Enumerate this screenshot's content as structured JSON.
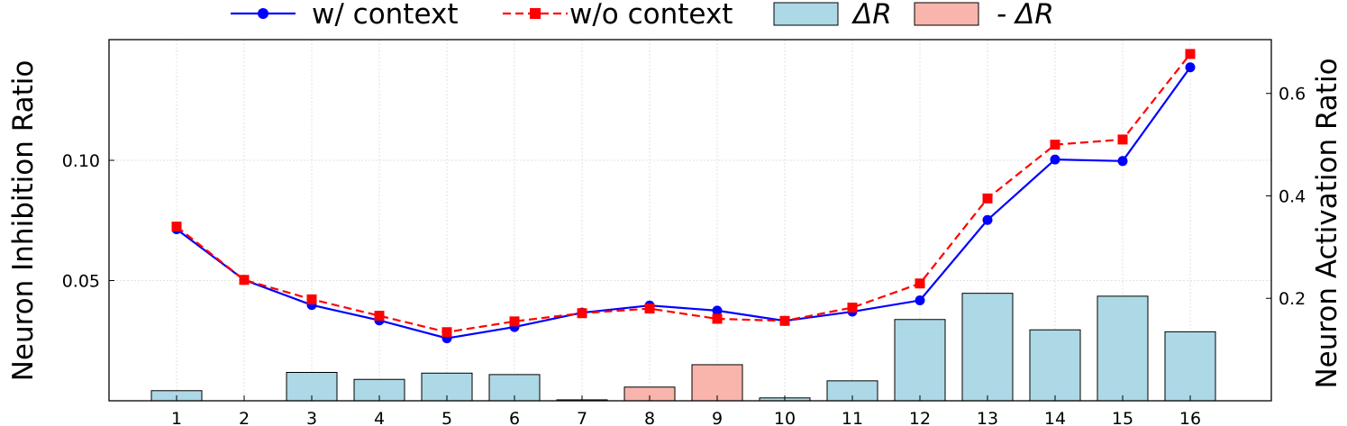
{
  "chart_data": {
    "type": "bar+line",
    "x": [
      1,
      2,
      3,
      4,
      5,
      6,
      7,
      8,
      9,
      10,
      11,
      12,
      13,
      14,
      15,
      16
    ],
    "ylabel_left": "Neuron Inhibition Ratio",
    "ylabel_right": "Neuron Activation Ratio",
    "left_yticks": [
      "0.05",
      "0.10"
    ],
    "right_yticks": [
      "0.2",
      "0.4",
      "0.6"
    ],
    "left_ylim": [
      0.0,
      0.1502
    ],
    "right_ylim": [
      0.0,
      0.705
    ],
    "grid": true,
    "legend_position": "top",
    "bars": {
      "axis": "left",
      "values": [
        0.0042,
        0.0,
        0.0118,
        0.0089,
        0.0115,
        0.0109,
        0.0004,
        0.0057,
        0.015,
        0.0012,
        0.0083,
        0.0338,
        0.0447,
        0.0295,
        0.0435,
        0.0287
      ],
      "sign": [
        "+",
        "+",
        "+",
        "+",
        "+",
        "+",
        "+",
        "-",
        "-",
        "+",
        "+",
        "+",
        "+",
        "+",
        "+",
        "+"
      ]
    },
    "series": [
      {
        "name": "w/ context",
        "axis": "right",
        "color": "#0000ff",
        "style": "solid",
        "marker": "circle",
        "values": [
          0.335,
          0.236,
          0.187,
          0.157,
          0.122,
          0.144,
          0.172,
          0.186,
          0.176,
          0.156,
          0.174,
          0.196,
          0.353,
          0.471,
          0.468,
          0.651
        ]
      },
      {
        "name": "w/o context",
        "axis": "right",
        "color": "#ff0000",
        "style": "dashed",
        "marker": "square",
        "values": [
          0.34,
          0.236,
          0.198,
          0.166,
          0.134,
          0.155,
          0.171,
          0.18,
          0.16,
          0.156,
          0.182,
          0.229,
          0.395,
          0.5,
          0.51,
          0.677
        ]
      }
    ],
    "legend": [
      {
        "label": "w/ context",
        "kind": "line",
        "color": "#0000ff",
        "style": "solid",
        "marker": "circle"
      },
      {
        "label": "w/o context",
        "kind": "line",
        "color": "#ff0000",
        "style": "dashed",
        "marker": "square"
      },
      {
        "label": "ΔR",
        "kind": "patch",
        "color": "#add8e6"
      },
      {
        "label": "- ΔR",
        "kind": "patch",
        "color": "#f9b4ab"
      }
    ]
  }
}
